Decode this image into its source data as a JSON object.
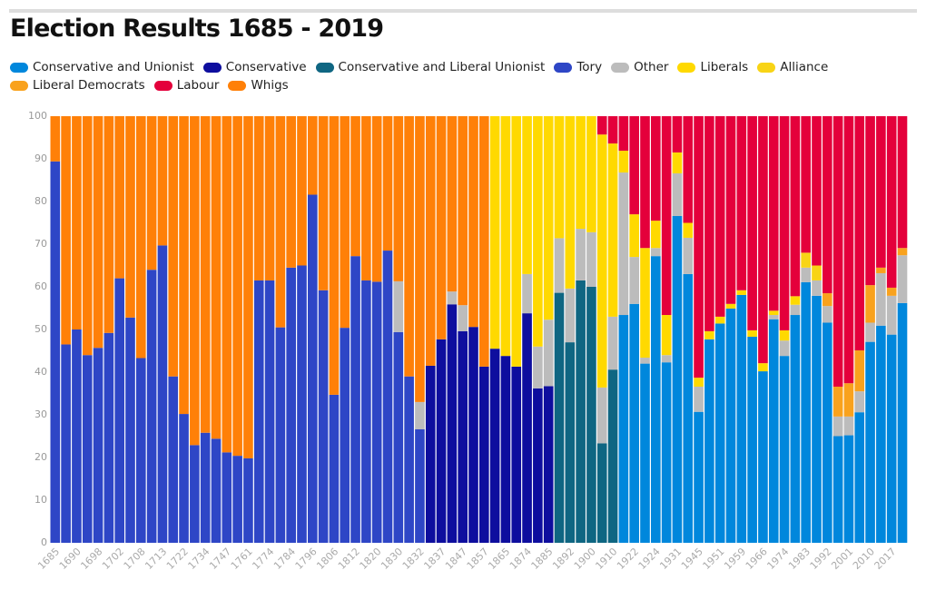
{
  "chart_data": {
    "type": "stacked_bar",
    "title": "Election Results 1685 - 2019",
    "categories": [
      "1685",
      null,
      "1690",
      null,
      "1698",
      null,
      "1702",
      null,
      "1708",
      null,
      "1713",
      null,
      "1722",
      null,
      "1734",
      null,
      "1747",
      null,
      "1761",
      null,
      "1774",
      null,
      "1784",
      null,
      "1796",
      null,
      "1806",
      null,
      "1812",
      null,
      "1820",
      null,
      "1830",
      null,
      "1832",
      null,
      "1837",
      null,
      "1847",
      null,
      "1857",
      null,
      "1865",
      null,
      "1874",
      null,
      "1885",
      null,
      "1892",
      null,
      "1900",
      null,
      "1910",
      null,
      "1922",
      null,
      "1924",
      null,
      "1931",
      null,
      "1945",
      null,
      "1951",
      null,
      "1959",
      null,
      "1966",
      null,
      "1974",
      null,
      "1983",
      null,
      "1992",
      null,
      "2001",
      null,
      "2010",
      null,
      "2017",
      null
    ],
    "ylim": [
      0,
      100
    ],
    "yticks": [
      0,
      10,
      20,
      30,
      40,
      50,
      60,
      70,
      80,
      90,
      100
    ],
    "grid": false,
    "series": [
      {
        "name": "Conservative and Unionist",
        "color": "#0087dc",
        "values": [
          null,
          null,
          null,
          null,
          null,
          null,
          null,
          null,
          null,
          null,
          null,
          null,
          null,
          null,
          null,
          null,
          null,
          null,
          null,
          null,
          null,
          null,
          null,
          null,
          null,
          null,
          null,
          null,
          null,
          null,
          null,
          null,
          null,
          null,
          null,
          null,
          null,
          null,
          null,
          null,
          null,
          null,
          null,
          null,
          null,
          null,
          null,
          null,
          null,
          null,
          null,
          null,
          null,
          53.4,
          56,
          42,
          67.2,
          42.3,
          76.6,
          63,
          30.7,
          47.7,
          51.4,
          54.9,
          58.1,
          48.3,
          40.2,
          52.4,
          43.8,
          53.4,
          61.1,
          57.9,
          51.6,
          25,
          25.2,
          30.6,
          47.1,
          50.9,
          48.8,
          56.2
        ]
      },
      {
        "name": "Conservative",
        "color": "#0e0e9e",
        "values": [
          null,
          null,
          null,
          null,
          null,
          null,
          null,
          null,
          null,
          null,
          null,
          null,
          null,
          null,
          null,
          null,
          null,
          null,
          null,
          null,
          null,
          null,
          null,
          null,
          null,
          null,
          null,
          null,
          null,
          null,
          null,
          null,
          null,
          null,
          null,
          41.5,
          47.7,
          55.9,
          49.6,
          50.6,
          41.3,
          45.5,
          43.8,
          41.3,
          53.8,
          36.2,
          36.7,
          null,
          null,
          null,
          null,
          null,
          null,
          null,
          null,
          null,
          null,
          null,
          null,
          null,
          null,
          null,
          null,
          null,
          null,
          null,
          null,
          null,
          null,
          null,
          null,
          null,
          null,
          null,
          null,
          null,
          null,
          null,
          null,
          null
        ]
      },
      {
        "name": "Conservative and Liberal Unionist",
        "color": "#0f6682",
        "values": [
          null,
          null,
          null,
          null,
          null,
          null,
          null,
          null,
          null,
          null,
          null,
          null,
          null,
          null,
          null,
          null,
          null,
          null,
          null,
          null,
          null,
          null,
          null,
          null,
          null,
          null,
          null,
          null,
          null,
          null,
          null,
          null,
          null,
          null,
          null,
          null,
          null,
          null,
          null,
          null,
          null,
          null,
          null,
          null,
          null,
          null,
          null,
          58.6,
          47,
          61.5,
          60,
          23.3,
          40.6,
          null,
          null,
          null,
          null,
          null,
          null,
          null,
          null,
          null,
          null,
          null,
          null,
          null,
          null,
          null,
          null,
          null,
          null,
          null,
          null,
          null,
          null,
          null,
          null,
          null,
          null,
          null
        ]
      },
      {
        "name": "Tory",
        "color": "#2e46c6",
        "values": [
          89.4,
          46.5,
          50,
          44,
          45.7,
          49.2,
          62,
          52.8,
          43.3,
          64,
          69.7,
          39,
          30.2,
          22.9,
          25.8,
          24.4,
          21.2,
          20.4,
          19.8,
          61.5,
          61.5,
          50.5,
          64.5,
          65,
          81.6,
          59.2,
          34.7,
          50.4,
          67.2,
          61.5,
          61.2,
          68.5,
          49.4,
          39,
          26.6,
          null,
          null,
          null,
          null,
          null,
          null,
          null,
          null,
          null,
          null,
          null,
          null,
          null,
          null,
          null,
          null,
          null,
          null,
          null,
          null,
          null,
          null,
          null,
          null,
          null,
          null,
          null,
          null,
          null,
          null,
          null,
          null,
          null,
          null,
          null,
          null,
          null,
          null,
          null,
          null,
          null,
          null,
          null,
          null,
          null
        ]
      },
      {
        "name": "Other",
        "color": "#bcbcbc",
        "values": [
          null,
          null,
          null,
          null,
          null,
          null,
          null,
          null,
          null,
          null,
          null,
          null,
          null,
          null,
          null,
          null,
          null,
          null,
          null,
          null,
          null,
          null,
          null,
          null,
          null,
          null,
          null,
          null,
          null,
          null,
          null,
          null,
          11.9,
          null,
          6.4,
          null,
          null,
          3.0,
          6.1,
          null,
          null,
          null,
          null,
          null,
          9.2,
          9.8,
          15.6,
          12.8,
          12.6,
          12.1,
          12.8,
          13.1,
          12.4,
          33.4,
          11,
          1.4,
          1.9,
          1.7,
          10,
          8.5,
          5.9,
          null,
          null,
          null,
          null,
          null,
          null,
          1,
          3.6,
          2.4,
          3.4,
          3.6,
          3.9,
          4.6,
          4.4,
          4.9,
          4.5,
          12.3,
          9.1,
          11.2
        ]
      },
      {
        "name": "Liberals",
        "color": "#ffd900",
        "values": [
          null,
          null,
          null,
          null,
          null,
          null,
          null,
          null,
          null,
          null,
          null,
          null,
          null,
          null,
          null,
          null,
          null,
          null,
          null,
          null,
          null,
          null,
          null,
          null,
          null,
          null,
          null,
          null,
          null,
          null,
          null,
          null,
          null,
          null,
          null,
          null,
          null,
          null,
          null,
          null,
          null,
          54.5,
          56.2,
          58.7,
          37,
          54,
          47.7,
          28.6,
          40.4,
          26.4,
          27.2,
          59.3,
          40.6,
          5.1,
          10,
          25.7,
          6.4,
          9.4,
          4.9,
          3.5,
          2.1,
          1.9,
          1.6,
          1.1,
          1.1,
          1.5,
          1.9,
          1,
          2.4,
          2,
          null,
          null,
          null,
          null,
          null,
          null,
          null,
          null,
          null,
          null
        ]
      },
      {
        "name": "Alliance",
        "color": "#f8d416",
        "values": [
          null,
          null,
          null,
          null,
          null,
          null,
          null,
          null,
          null,
          null,
          null,
          null,
          null,
          null,
          null,
          null,
          null,
          null,
          null,
          null,
          null,
          null,
          null,
          null,
          null,
          null,
          null,
          null,
          null,
          null,
          null,
          null,
          null,
          null,
          null,
          null,
          null,
          null,
          null,
          null,
          null,
          null,
          null,
          null,
          null,
          null,
          null,
          null,
          null,
          null,
          null,
          null,
          null,
          null,
          null,
          null,
          null,
          null,
          null,
          null,
          null,
          null,
          null,
          null,
          null,
          null,
          null,
          null,
          null,
          null,
          3.5,
          3.5,
          null,
          null,
          null,
          null,
          null,
          null,
          null,
          null
        ]
      },
      {
        "name": "Liberal Democrats",
        "color": "#f9a21d",
        "values": [
          null,
          null,
          null,
          null,
          null,
          null,
          null,
          null,
          null,
          null,
          null,
          null,
          null,
          null,
          null,
          null,
          null,
          null,
          null,
          null,
          null,
          null,
          null,
          null,
          null,
          null,
          null,
          null,
          null,
          null,
          null,
          null,
          null,
          null,
          null,
          null,
          null,
          null,
          null,
          null,
          null,
          null,
          null,
          null,
          null,
          null,
          null,
          null,
          null,
          null,
          null,
          null,
          null,
          null,
          null,
          null,
          null,
          null,
          null,
          null,
          null,
          null,
          null,
          null,
          null,
          null,
          null,
          null,
          null,
          null,
          null,
          null,
          3,
          7,
          7.8,
          9.6,
          8.8,
          1.3,
          1.9,
          1.7
        ]
      },
      {
        "name": "Labour",
        "color": "#e4003b",
        "values": [
          null,
          null,
          null,
          null,
          null,
          null,
          null,
          null,
          null,
          null,
          null,
          null,
          null,
          null,
          null,
          null,
          null,
          null,
          null,
          null,
          null,
          null,
          null,
          null,
          null,
          null,
          null,
          null,
          null,
          null,
          null,
          null,
          null,
          null,
          null,
          null,
          null,
          null,
          null,
          null,
          null,
          null,
          null,
          null,
          null,
          null,
          null,
          null,
          null,
          null,
          null,
          4.3,
          6.4,
          8.1,
          23,
          30.9,
          24.5,
          46.6,
          8.5,
          25,
          61.3,
          50.4,
          47,
          44,
          40.8,
          50.2,
          57.9,
          45.6,
          50.2,
          42.2,
          32,
          35,
          41.5,
          63.4,
          62.6,
          54.9,
          39.6,
          35.5,
          40.2,
          30.9
        ]
      },
      {
        "name": "Whigs",
        "color": "#ff8008",
        "values": [
          10.6,
          53.5,
          50,
          56,
          54.3,
          50.8,
          38,
          47.2,
          56.7,
          36,
          30.3,
          61,
          69.8,
          77.1,
          74.2,
          75.6,
          78.8,
          79.6,
          80.2,
          38.5,
          38.5,
          49.5,
          35.5,
          35,
          18.4,
          40.8,
          65.3,
          49.6,
          32.8,
          38.5,
          38.8,
          31.5,
          38.7,
          61,
          67,
          58.5,
          52.3,
          41.1,
          44.3,
          49.4,
          58.7,
          null,
          null,
          null,
          null,
          null,
          null,
          null,
          null,
          null,
          null,
          null,
          null,
          null,
          null,
          null,
          null,
          null,
          null,
          null,
          null,
          null,
          null,
          null,
          null,
          null,
          null,
          null,
          null,
          null,
          null,
          null,
          null,
          null,
          null,
          null,
          null,
          null,
          null,
          null
        ]
      }
    ]
  }
}
